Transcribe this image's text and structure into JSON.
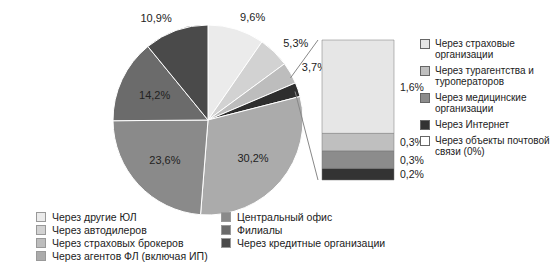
{
  "chart_data": [
    {
      "type": "pie",
      "categories": [
        "Через другие ЮЛ",
        "Через автодилеров",
        "Через страховых брокеров",
        null,
        "Через агентов ФЛ (включая ИП)",
        "Центральный офис",
        "Филиалы",
        "Через кредитные организации"
      ],
      "values": [
        9.6,
        5.3,
        3.7,
        2.4,
        30.2,
        23.6,
        14.2,
        10.9
      ],
      "value_labels": [
        "9,6%",
        "5,3%",
        "3,7%",
        null,
        "30,2%",
        "23,6%",
        "14,2%",
        "10,9%"
      ],
      "colors": [
        "#ebebeb",
        "#d2d2d2",
        "#bdbdbd",
        "#2e2e2e",
        "#ababab",
        "#8a8a8a",
        "#6b6b6b",
        "#4a4a4a"
      ],
      "data_labels": true,
      "legend": "bottom"
    },
    {
      "type": "bar",
      "stacked": true,
      "data_labels": true,
      "tick_labels": false,
      "legend": "right",
      "series": [
        {
          "name": "Через страховые организации",
          "color": "#e6e6e6",
          "values": [
            1.6
          ],
          "value_labels": [
            "1,6%"
          ]
        },
        {
          "name": "Через турагентства и туроператоров",
          "color": "#bfbfbf",
          "values": [
            0.3
          ],
          "value_labels": [
            "0,3%"
          ]
        },
        {
          "name": "Через медицинские организации",
          "color": "#8c8c8c",
          "values": [
            0.3
          ],
          "value_labels": [
            "0,3%"
          ]
        },
        {
          "name": "Через Интернет",
          "color": "#333333",
          "values": [
            0.2
          ],
          "value_labels": [
            "0,2%"
          ]
        },
        {
          "name": "Через объекты почтовой связи (0%)",
          "color": "#ffffff",
          "values": [
            0
          ]
        }
      ]
    }
  ]
}
